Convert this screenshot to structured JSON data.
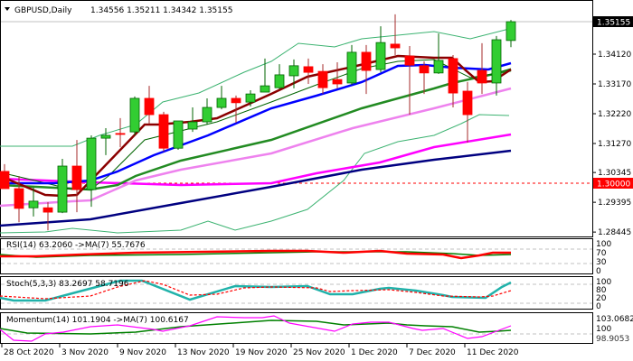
{
  "header": {
    "symbol_timeframe": "GBPUSD,Daily",
    "ohlc": "1.34556 1.35211 1.34342 1.35155"
  },
  "colors": {
    "bull": "#32CD32",
    "bear": "#FF0000",
    "bull_wick": "#006400",
    "bear_wick": "#A52A2A",
    "current_price_bg": "#000000",
    "level_bg": "#FF0000"
  },
  "price_labels": {
    "current": "1.35155",
    "level": "1.30000"
  },
  "chart_data": {
    "type": "candlestick",
    "title": "GBPUSD,Daily",
    "y_ticks": [
      1.3412,
      1.3317,
      1.3222,
      1.3127,
      1.30345,
      1.29395,
      1.28445
    ],
    "y_tick_labels": [
      "1.34120",
      "1.33170",
      "1.32220",
      "1.31270",
      "1.30345",
      "1.29395",
      "1.28445"
    ],
    "ylim": [
      1.284,
      1.354
    ],
    "x_tick_labels": [
      "28 Oct 2020",
      "3 Nov 2020",
      "9 Nov 2020",
      "13 Nov 2020",
      "19 Nov 2020",
      "25 Nov 2020",
      "1 Dec 2020",
      "7 Dec 2020",
      "11 Dec 2020"
    ],
    "x_tick_bar_index": [
      0,
      4,
      8,
      12,
      16,
      20,
      24,
      28,
      32
    ],
    "horizontal_levels": [
      1.3,
      1.35155
    ],
    "candles": [
      [
        1.3038,
        1.3061,
        1.2983,
        1.2983
      ],
      [
        1.2983,
        1.3023,
        1.2876,
        1.292
      ],
      [
        1.2922,
        1.2986,
        1.2894,
        1.2943
      ],
      [
        1.2922,
        1.294,
        1.285,
        1.2908
      ],
      [
        1.2908,
        1.3078,
        1.2905,
        1.3055
      ],
      [
        1.3055,
        1.3138,
        1.2908,
        1.298
      ],
      [
        1.298,
        1.3153,
        1.2925,
        1.3144
      ],
      [
        1.3144,
        1.3176,
        1.309,
        1.3153
      ],
      [
        1.3159,
        1.3208,
        1.3115,
        1.3156
      ],
      [
        1.3164,
        1.3277,
        1.3153,
        1.3271
      ],
      [
        1.3271,
        1.3311,
        1.319,
        1.3219
      ],
      [
        1.3219,
        1.3228,
        1.3101,
        1.3112
      ],
      [
        1.3112,
        1.3199,
        1.3107,
        1.3199
      ],
      [
        1.3173,
        1.3242,
        1.3164,
        1.3196
      ],
      [
        1.3196,
        1.3271,
        1.3187,
        1.3242
      ],
      [
        1.3242,
        1.3311,
        1.3236,
        1.3271
      ],
      [
        1.3271,
        1.328,
        1.3193,
        1.3257
      ],
      [
        1.3259,
        1.3297,
        1.3245,
        1.3285
      ],
      [
        1.3291,
        1.3398,
        1.3291,
        1.3311
      ],
      [
        1.3305,
        1.338,
        1.33,
        1.3346
      ],
      [
        1.3343,
        1.3395,
        1.3303,
        1.3375
      ],
      [
        1.3372,
        1.3398,
        1.3317,
        1.3354
      ],
      [
        1.3357,
        1.338,
        1.3285,
        1.3305
      ],
      [
        1.3331,
        1.3386,
        1.3303,
        1.3317
      ],
      [
        1.332,
        1.3441,
        1.3314,
        1.3418
      ],
      [
        1.3418,
        1.3441,
        1.3285,
        1.336
      ],
      [
        1.3363,
        1.3501,
        1.3354,
        1.3449
      ],
      [
        1.3444,
        1.3539,
        1.3409,
        1.3432
      ],
      [
        1.3406,
        1.3438,
        1.3219,
        1.3377
      ],
      [
        1.3375,
        1.3389,
        1.3285,
        1.3352
      ],
      [
        1.3352,
        1.3478,
        1.3349,
        1.3392
      ],
      [
        1.3398,
        1.3409,
        1.3242,
        1.3288
      ],
      [
        1.3294,
        1.3323,
        1.313,
        1.3219
      ],
      [
        1.336,
        1.3447,
        1.3285,
        1.332
      ],
      [
        1.332,
        1.347,
        1.328,
        1.3458
      ],
      [
        1.34556,
        1.35211,
        1.34342,
        1.35155
      ]
    ],
    "indicators": {
      "rsi": {
        "label": "RSI(14) 63.2060  ->MA(7) 55.7676",
        "value": 63.206,
        "ma": 55.7676,
        "levels": [
          "100",
          "70",
          "30",
          "0"
        ]
      },
      "stoch": {
        "label": "Stoch(5,3,3) 83.2697 58.7196",
        "k": 83.2697,
        "d": 58.7196,
        "levels": [
          "100",
          "80",
          "20",
          "0"
        ]
      },
      "momentum": {
        "label": "Momentum(14) 101.1904  ->MA(7) 100.6167",
        "value": 101.1904,
        "ma": 100.6167,
        "levels": [
          "103.0682",
          "100",
          "98.9053"
        ]
      }
    }
  }
}
